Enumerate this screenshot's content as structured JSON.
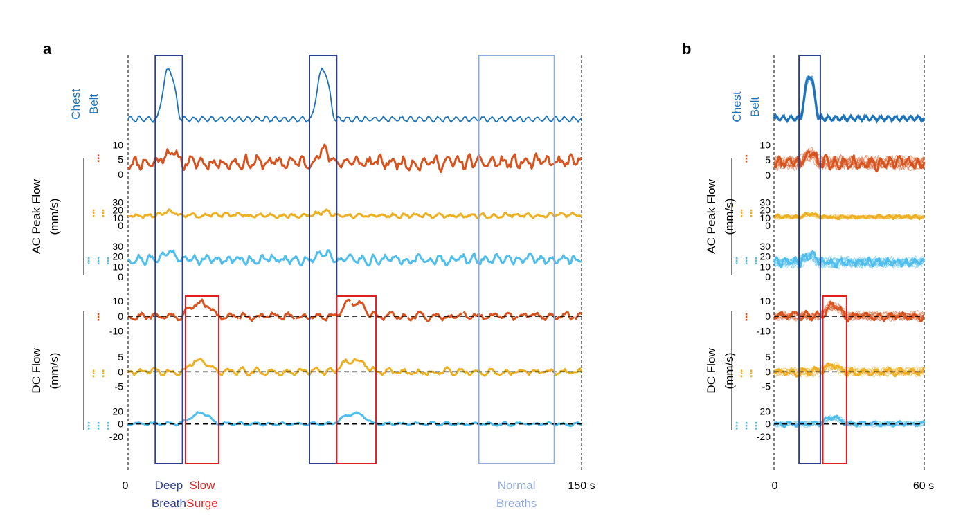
{
  "chart_data": {
    "type": "line",
    "figure_title": "",
    "colors": {
      "chest_belt": "#1c75bc",
      "ch1": "#d9531e",
      "ch2": "#eeb021",
      "ch3": "#4dbeee",
      "deep_breath_box": "#2b3f8c",
      "slow_surge_box": "#e0201f",
      "normal_breaths_box": "#8faadc",
      "zero_line": "#000000"
    },
    "channel_markers": [
      "⋮",
      "⋮⋮",
      "⋮⋮⋮"
    ],
    "panels": [
      {
        "panel_label": "a",
        "x_start_label": "0",
        "x_end_label": "150 s",
        "x_range": [
          0,
          150
        ],
        "box_labels": {
          "deep_breath": [
            "Deep",
            "Breath"
          ],
          "slow_surge": [
            "Slow",
            "Surge"
          ],
          "normal_breaths": [
            "Normal",
            "Breaths"
          ]
        },
        "deep_breath_intervals": [
          [
            9,
            18
          ],
          [
            60,
            69
          ]
        ],
        "slow_surge_intervals": [
          [
            19,
            30
          ],
          [
            69,
            82
          ]
        ],
        "normal_breaths_intervals": [
          [
            116,
            141
          ]
        ],
        "chest_belt_label": [
          "Chest",
          "Belt"
        ],
        "ac_group_label": [
          "AC Peak Flow",
          "(mm/s)"
        ],
        "dc_group_label": [
          "DC Flow",
          "(mm/s)"
        ],
        "chest_belt": {
          "name": "Chest Belt",
          "deep_breaths": [
            [
              9,
              18
            ],
            [
              60,
              69
            ]
          ],
          "baseline_oscillation": 0.6
        },
        "ac_peak_flow": [
          {
            "channel": 1,
            "ticks": [
              "10",
              "5",
              "0"
            ],
            "tick_values": [
              10,
              5,
              0
            ],
            "ylim": [
              0,
              11
            ],
            "mean": 4,
            "amplitude": 3
          },
          {
            "channel": 2,
            "ticks": [
              "30",
              "20",
              "10",
              "0"
            ],
            "tick_values": [
              30,
              20,
              10,
              0
            ],
            "ylim": [
              0,
              32
            ],
            "mean": 13,
            "amplitude": 4
          },
          {
            "channel": 3,
            "ticks": [
              "30",
              "20",
              "10",
              "0"
            ],
            "tick_values": [
              30,
              20,
              10,
              0
            ],
            "ylim": [
              0,
              32
            ],
            "mean": 17,
            "amplitude": 6
          }
        ],
        "dc_flow": [
          {
            "channel": 1,
            "ticks": [
              "10",
              "0",
              "-10"
            ],
            "tick_values": [
              10,
              0,
              -10
            ],
            "ylim": [
              -12,
              11
            ],
            "amplitude": 4,
            "surge_level": 9,
            "gaps": true
          },
          {
            "channel": 2,
            "ticks": [
              "5",
              "0",
              "-5"
            ],
            "tick_values": [
              5,
              0,
              -5
            ],
            "ylim": [
              -7,
              6
            ],
            "amplitude": 1.8,
            "surge_level": 4
          },
          {
            "channel": 3,
            "ticks": [
              "20",
              "0",
              "-20"
            ],
            "tick_values": [
              20,
              0,
              -20
            ],
            "ylim": [
              -30,
              25
            ],
            "amplitude": 4,
            "surge_level": 17
          }
        ]
      },
      {
        "panel_label": "b",
        "x_start_label": "0",
        "x_end_label": "60 s",
        "x_range": [
          0,
          60
        ],
        "deep_breath_intervals": [
          [
            10,
            18.5
          ]
        ],
        "slow_surge_intervals": [
          [
            19.5,
            29
          ]
        ],
        "chest_belt_label": [
          "Chest",
          "Belt"
        ],
        "ac_group_label": [
          "AC Peak Flow",
          "(mm/s)"
        ],
        "dc_group_label": [
          "DC Flow",
          "(mm/s)"
        ],
        "overlay_trials": 8,
        "ac_peak_flow": [
          {
            "channel": 1,
            "ticks": [
              "10",
              "5",
              "0"
            ],
            "tick_values": [
              10,
              5,
              0
            ],
            "ylim": [
              0,
              11
            ],
            "mean": 4,
            "amplitude": 2.5
          },
          {
            "channel": 2,
            "ticks": [
              "30",
              "20",
              "10",
              "0"
            ],
            "tick_values": [
              30,
              20,
              10,
              0
            ],
            "ylim": [
              0,
              32
            ],
            "mean": 11,
            "amplitude": 3
          },
          {
            "channel": 3,
            "ticks": [
              "30",
              "20",
              "10",
              "0"
            ],
            "tick_values": [
              30,
              20,
              10,
              0
            ],
            "ylim": [
              0,
              32
            ],
            "mean": 14,
            "amplitude": 6
          }
        ],
        "dc_flow": [
          {
            "channel": 1,
            "ticks": [
              "10",
              "0",
              "-10"
            ],
            "tick_values": [
              10,
              0,
              -10
            ],
            "ylim": [
              -12,
              11
            ],
            "amplitude": 4,
            "surge_level": 7
          },
          {
            "channel": 2,
            "ticks": [
              "5",
              "0",
              "-5"
            ],
            "tick_values": [
              5,
              0,
              -5
            ],
            "ylim": [
              -7,
              6
            ],
            "amplitude": 2,
            "surge_level": 2
          },
          {
            "channel": 3,
            "ticks": [
              "20",
              "0",
              "-20"
            ],
            "tick_values": [
              20,
              0,
              -20
            ],
            "ylim": [
              -30,
              25
            ],
            "amplitude": 6,
            "surge_level": 10
          }
        ]
      }
    ]
  }
}
